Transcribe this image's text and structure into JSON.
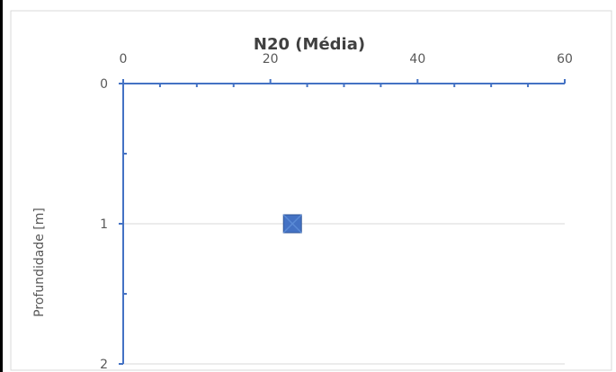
{
  "chart_data": {
    "type": "scatter",
    "title": "N20 (Média)",
    "xlabel": "",
    "ylabel": "Profundidade  [m]",
    "xlim": [
      0,
      60
    ],
    "ylim": [
      0,
      2
    ],
    "x_ticks": [
      "0",
      "20",
      "40",
      "60"
    ],
    "y_ticks": [
      "0",
      "1",
      "2"
    ],
    "x_axis_position": "top",
    "y_axis_inverted": true,
    "grid": "horizontal",
    "legend": "none",
    "series": [
      {
        "values": [
          {
            "x": 23,
            "y": 1
          }
        ],
        "color": "#4472C4",
        "marker": "square-x"
      }
    ],
    "colors": {
      "axis": "#4472C4",
      "grid": "#D9D9D9",
      "border": "#D9D9D9"
    }
  }
}
